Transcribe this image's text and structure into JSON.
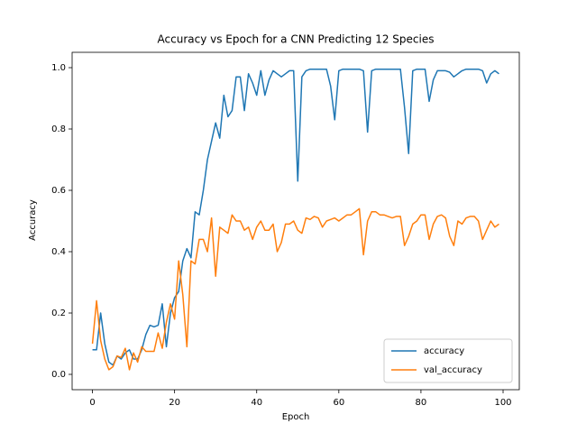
{
  "chart_data": {
    "type": "line",
    "title": "Accuracy vs Epoch for a CNN Predicting 12 Species",
    "x_label": "Epoch",
    "y_label": "Accuracy",
    "x": [
      0,
      1,
      2,
      3,
      4,
      5,
      6,
      7,
      8,
      9,
      10,
      11,
      12,
      13,
      14,
      15,
      16,
      17,
      18,
      19,
      20,
      21,
      22,
      23,
      24,
      25,
      26,
      27,
      28,
      29,
      30,
      31,
      32,
      33,
      34,
      35,
      36,
      37,
      38,
      39,
      40,
      41,
      42,
      43,
      44,
      45,
      46,
      47,
      48,
      49,
      50,
      51,
      52,
      53,
      54,
      55,
      56,
      57,
      58,
      59,
      60,
      61,
      62,
      63,
      64,
      65,
      66,
      67,
      68,
      69,
      70,
      71,
      72,
      73,
      74,
      75,
      76,
      77,
      78,
      79,
      80,
      81,
      82,
      83,
      84,
      85,
      86,
      87,
      88,
      89,
      90,
      91,
      92,
      93,
      94,
      95,
      96,
      97,
      98,
      99
    ],
    "series": [
      {
        "name": "accuracy",
        "color": "#1f77b4",
        "values": [
          0.08,
          0.08,
          0.2,
          0.1,
          0.04,
          0.03,
          0.06,
          0.05,
          0.07,
          0.08,
          0.05,
          0.05,
          0.08,
          0.13,
          0.16,
          0.155,
          0.16,
          0.23,
          0.09,
          0.2,
          0.25,
          0.27,
          0.37,
          0.41,
          0.38,
          0.53,
          0.52,
          0.6,
          0.7,
          0.76,
          0.82,
          0.77,
          0.91,
          0.84,
          0.86,
          0.97,
          0.97,
          0.86,
          0.98,
          0.95,
          0.91,
          0.99,
          0.91,
          0.96,
          0.99,
          0.98,
          0.97,
          0.98,
          0.99,
          0.99,
          0.63,
          0.97,
          0.99,
          0.995,
          0.995,
          0.995,
          0.995,
          0.995,
          0.94,
          0.83,
          0.99,
          0.995,
          0.995,
          0.995,
          0.995,
          0.995,
          0.99,
          0.79,
          0.99,
          0.995,
          0.995,
          0.995,
          0.995,
          0.995,
          0.995,
          0.995,
          0.87,
          0.72,
          0.99,
          0.995,
          0.995,
          0.995,
          0.89,
          0.96,
          0.99,
          0.99,
          0.99,
          0.985,
          0.97,
          0.98,
          0.99,
          0.995,
          0.995,
          0.995,
          0.995,
          0.99,
          0.95,
          0.98,
          0.99,
          0.98
        ]
      },
      {
        "name": "val_accuracy",
        "color": "#ff7f0e",
        "values": [
          0.1,
          0.24,
          0.11,
          0.05,
          0.015,
          0.025,
          0.06,
          0.055,
          0.085,
          0.015,
          0.07,
          0.04,
          0.09,
          0.075,
          0.075,
          0.075,
          0.135,
          0.085,
          0.17,
          0.23,
          0.18,
          0.37,
          0.26,
          0.09,
          0.37,
          0.36,
          0.44,
          0.44,
          0.4,
          0.51,
          0.32,
          0.48,
          0.47,
          0.46,
          0.52,
          0.5,
          0.5,
          0.47,
          0.48,
          0.44,
          0.48,
          0.5,
          0.47,
          0.47,
          0.49,
          0.4,
          0.43,
          0.49,
          0.49,
          0.5,
          0.47,
          0.46,
          0.51,
          0.505,
          0.515,
          0.51,
          0.48,
          0.5,
          0.505,
          0.51,
          0.5,
          0.51,
          0.52,
          0.52,
          0.53,
          0.54,
          0.39,
          0.5,
          0.53,
          0.53,
          0.52,
          0.52,
          0.515,
          0.51,
          0.515,
          0.515,
          0.42,
          0.45,
          0.49,
          0.5,
          0.52,
          0.52,
          0.44,
          0.49,
          0.515,
          0.52,
          0.51,
          0.45,
          0.42,
          0.5,
          0.49,
          0.51,
          0.515,
          0.515,
          0.5,
          0.44,
          0.47,
          0.5,
          0.48,
          0.49
        ]
      }
    ],
    "xlim": [
      -4.95,
      103.95
    ],
    "ylim": [
      -0.05,
      1.05
    ],
    "xticks": [
      0,
      20,
      40,
      60,
      80,
      100
    ],
    "yticks": [
      {
        "value": 0,
        "label": "0.0"
      },
      0.2,
      0.4,
      0.6,
      0.8,
      {
        "value": 1,
        "label": "1.0"
      }
    ],
    "legend": "lower right"
  }
}
